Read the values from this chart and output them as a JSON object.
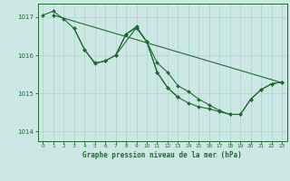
{
  "title": "Graphe pression niveau de la mer (hPa)",
  "background_color": "#cde8e4",
  "grid_color": "#a8d5cc",
  "line_color": "#1e6b30",
  "xlim": [
    -0.5,
    23.5
  ],
  "ylim": [
    1013.75,
    1017.35
  ],
  "yticks": [
    1014,
    1015,
    1016,
    1017
  ],
  "xticks": [
    0,
    1,
    2,
    3,
    4,
    5,
    6,
    7,
    8,
    9,
    10,
    11,
    12,
    13,
    14,
    15,
    16,
    17,
    18,
    19,
    20,
    21,
    22,
    23
  ],
  "series1_x": [
    0,
    1,
    2,
    3,
    4,
    5,
    6,
    7,
    8,
    9,
    10,
    11,
    12,
    13,
    14,
    15,
    16,
    17,
    18,
    19,
    20,
    21,
    22,
    23
  ],
  "series1_y": [
    1017.05,
    1017.15,
    1016.95,
    1016.7,
    1016.15,
    1015.8,
    1015.85,
    1016.0,
    1016.55,
    1016.75,
    1016.35,
    1015.8,
    1015.55,
    1015.2,
    1015.05,
    1014.85,
    1014.7,
    1014.55,
    1014.45,
    1014.45,
    1014.85,
    1015.1,
    1015.25,
    1015.3
  ],
  "series2_x": [
    1,
    23
  ],
  "series2_y": [
    1017.05,
    1015.28
  ],
  "series3_x": [
    3,
    4,
    5,
    6,
    7,
    8,
    9,
    10,
    11,
    12,
    13
  ],
  "series3_y": [
    1016.7,
    1016.15,
    1015.78,
    1015.85,
    1016.0,
    1016.55,
    1016.72,
    1016.35,
    1015.55,
    1015.15,
    1014.9
  ],
  "series4_x": [
    7,
    9,
    10,
    11,
    12,
    13,
    14,
    15,
    16,
    17,
    18,
    19,
    20,
    21,
    22,
    23
  ],
  "series4_y": [
    1016.0,
    1016.72,
    1016.35,
    1015.55,
    1015.15,
    1014.9,
    1014.75,
    1014.65,
    1014.6,
    1014.52,
    1014.45,
    1014.45,
    1014.85,
    1015.1,
    1015.25,
    1015.3
  ]
}
